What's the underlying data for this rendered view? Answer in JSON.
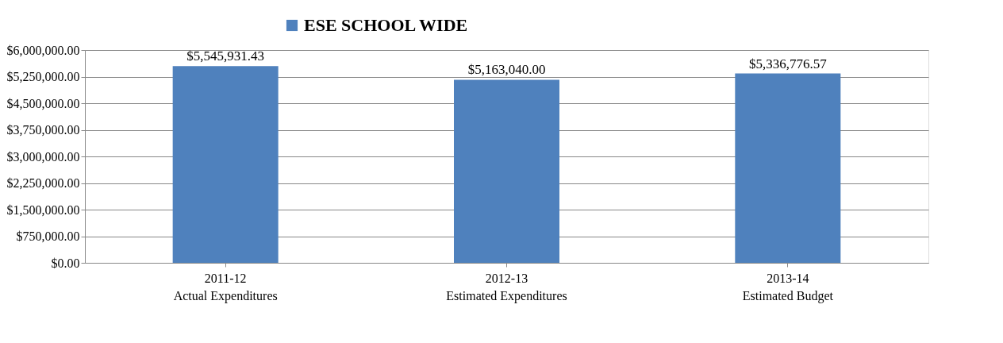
{
  "chart_data": {
    "type": "bar",
    "categories": [
      "2011-12\nActual Expenditures",
      "2012-13\nEstimated Expenditures",
      "2013-14\nEstimated Budget"
    ],
    "series": [
      {
        "name": "ESE SCHOOL WIDE",
        "color": "#4f81bd",
        "values": [
          5545931.43,
          5163040.0,
          5336776.57
        ],
        "value_labels": [
          "$5,545,931.43",
          "$5,163,040.00",
          "$5,336,776.57"
        ]
      }
    ],
    "ylim": [
      0,
      6000000
    ],
    "yticks": [
      {
        "value": 0,
        "label": "$0.00"
      },
      {
        "value": 750000,
        "label": "$750,000.00"
      },
      {
        "value": 1500000,
        "label": "$1,500,000.00"
      },
      {
        "value": 2250000,
        "label": "$2,250,000.00"
      },
      {
        "value": 3000000,
        "label": "$3,000,000.00"
      },
      {
        "value": 3750000,
        "label": "$3,750,000.00"
      },
      {
        "value": 4500000,
        "label": "$4,500,000.00"
      },
      {
        "value": 5250000,
        "label": "$5,250,000.00"
      },
      {
        "value": 6000000,
        "label": "$6,000,000.00"
      }
    ],
    "grid": "y",
    "legend": "top"
  }
}
